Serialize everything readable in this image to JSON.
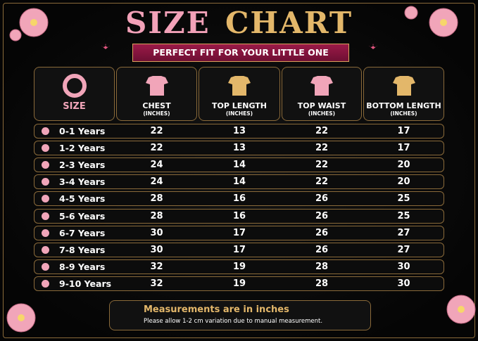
{
  "header": {
    "title_1": "SIZE",
    "title_2": "CHART",
    "subtitle": "PERFECT FIT FOR YOUR LITTLE ONE"
  },
  "table": {
    "columns": [
      {
        "name": "SIZE"
      },
      {
        "name": "CHEST",
        "unit": "(INCHES)"
      },
      {
        "name": "TOP LENGTH",
        "unit": "(INCHES)"
      },
      {
        "name": "TOP WAIST",
        "unit": "(INCHES)"
      },
      {
        "name": "BOTTOM LENGTH",
        "unit": "(INCHES)"
      }
    ],
    "rows": [
      [
        "0-1 Years",
        22,
        13,
        22,
        17
      ],
      [
        "1-2 Years",
        22,
        13,
        22,
        17
      ],
      [
        "2-3 Years",
        24,
        14,
        22,
        20
      ],
      [
        "3-4 Years",
        24,
        14,
        22,
        20
      ],
      [
        "4-5 Years",
        28,
        16,
        26,
        25
      ],
      [
        "5-6 Years",
        28,
        16,
        26,
        25
      ],
      [
        "6-7 Years",
        30,
        17,
        26,
        27
      ],
      [
        "7-8 Years",
        30,
        17,
        26,
        27
      ],
      [
        "8-9 Years",
        32,
        19,
        28,
        30
      ],
      [
        "9-10 Years",
        32,
        19,
        28,
        30
      ]
    ]
  },
  "footer": {
    "title": "Measurements are in inches",
    "note": "Please allow 1-2 cm variation due to manual measurement."
  }
}
